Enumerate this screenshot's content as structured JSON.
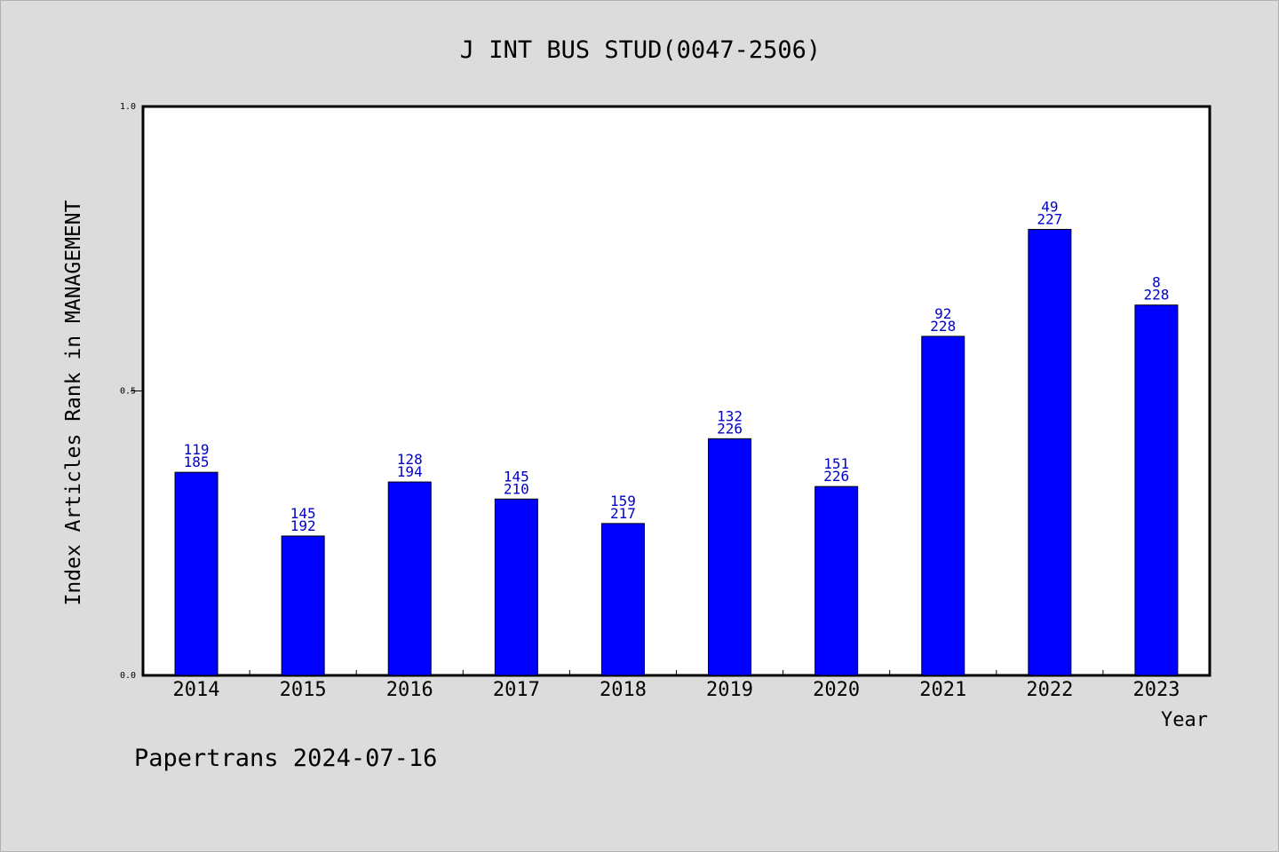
{
  "chart_data": {
    "type": "bar",
    "title": "J INT BUS STUD(0047-2506)",
    "xlabel": "Year",
    "ylabel": "Index Articles Rank in MANAGEMENT",
    "ylim": [
      0.0,
      1.0
    ],
    "yticks": [
      "0.0",
      "0.5",
      "1.0"
    ],
    "grid": false,
    "bar_color": "#0000ff",
    "label_color": "#0000c8",
    "categories": [
      "2014",
      "2015",
      "2016",
      "2017",
      "2018",
      "2019",
      "2020",
      "2021",
      "2022",
      "2023"
    ],
    "values": [
      0.357,
      0.245,
      0.34,
      0.31,
      0.267,
      0.416,
      0.332,
      0.596,
      0.784,
      0.651
    ],
    "rank": [
      "119",
      "145",
      "128",
      "145",
      "159",
      "132",
      "151",
      "92",
      "49",
      "8"
    ],
    "total": [
      "185",
      "192",
      "194",
      "210",
      "217",
      "226",
      "226",
      "228",
      "227",
      "228"
    ]
  },
  "footer": "Papertrans 2024-07-16"
}
